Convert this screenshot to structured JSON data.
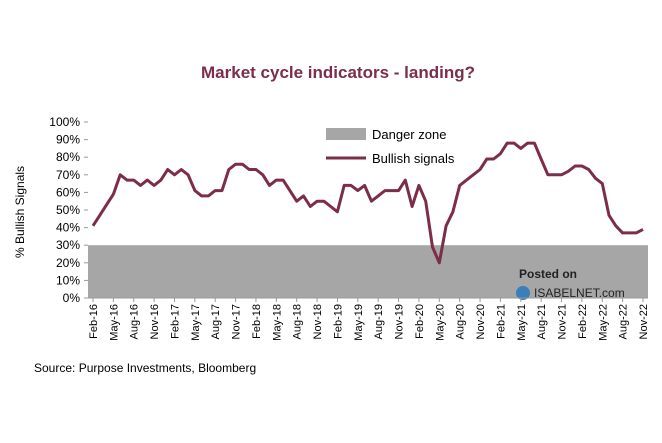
{
  "chart_data": {
    "type": "line",
    "title": "Market cycle indicators - landing?",
    "y_label": "% Bullish Signals",
    "source": "Source: Purpose Investments, Bloomberg",
    "watermark": [
      "Posted on",
      "ISABELNET.com"
    ],
    "categories": [
      "Feb-16",
      null,
      null,
      "May-16",
      null,
      null,
      "Aug-16",
      null,
      null,
      "Nov-16",
      null,
      null,
      "Feb-17",
      null,
      null,
      "May-17",
      null,
      null,
      "Aug-17",
      null,
      null,
      "Nov-17",
      null,
      null,
      "Feb-18",
      null,
      null,
      "May-18",
      null,
      null,
      "Aug-18",
      null,
      null,
      "Nov-18",
      null,
      null,
      "Feb-19",
      null,
      null,
      "May-19",
      null,
      null,
      "Aug-19",
      null,
      null,
      "Nov-19",
      null,
      null,
      "Feb-20",
      null,
      null,
      "May-20",
      null,
      null,
      "Aug-20",
      null,
      null,
      "Nov-20",
      null,
      null,
      "Feb-21",
      null,
      null,
      "May-21",
      null,
      null,
      "Aug-21",
      null,
      null,
      "Nov-21",
      null,
      null,
      "Feb-22",
      null,
      null,
      "May-22",
      null,
      null,
      "Aug-22",
      null,
      null,
      "Nov-22"
    ],
    "bands": [
      {
        "name": "Danger zone",
        "color": "#a6a6a6",
        "from": 0,
        "to": 30
      }
    ],
    "series": [
      {
        "name": "Bullish signals",
        "color": "#7b2d4a",
        "values": [
          41,
          47,
          53,
          59,
          70,
          67,
          67,
          64,
          67,
          64,
          67,
          73,
          70,
          73,
          70,
          61,
          58,
          58,
          61,
          61,
          73,
          76,
          76,
          73,
          73,
          70,
          64,
          67,
          67,
          61,
          55,
          58,
          52,
          55,
          55,
          52,
          49,
          64,
          64,
          61,
          64,
          55,
          58,
          61,
          61,
          61,
          67,
          52,
          64,
          55,
          29,
          20,
          41,
          49,
          64,
          67,
          70,
          73,
          79,
          79,
          82,
          88,
          88,
          85,
          88,
          88,
          79,
          70,
          70,
          70,
          72,
          75,
          75,
          73,
          68,
          65,
          47,
          41,
          37,
          37,
          37,
          39
        ]
      }
    ],
    "ylim": [
      0,
      100
    ],
    "yticks": [
      {
        "value": 0,
        "label": "0%"
      },
      {
        "value": 10,
        "label": "10%"
      },
      {
        "value": 20,
        "label": "20%"
      },
      {
        "value": 30,
        "label": "30%"
      },
      {
        "value": 40,
        "label": "40%"
      },
      {
        "value": 50,
        "label": "50%"
      },
      {
        "value": 60,
        "label": "60%"
      },
      {
        "value": 70,
        "label": "70%"
      },
      {
        "value": 80,
        "label": "80%"
      },
      {
        "value": 90,
        "label": "90%"
      },
      {
        "value": 100,
        "label": "100%"
      }
    ]
  }
}
